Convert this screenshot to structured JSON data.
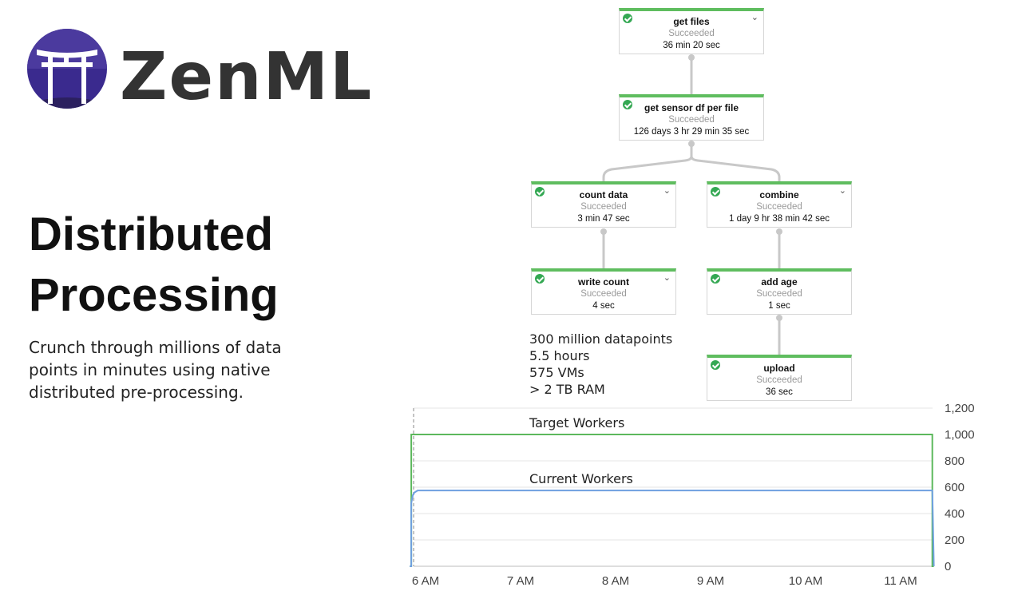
{
  "logo": {
    "name": "ZenML",
    "brand_color": "#3b2a8c"
  },
  "headline": {
    "line1": "Distributed",
    "line2": "Processing"
  },
  "description": "Crunch through millions of data points in minutes using native distributed pre-processing.",
  "pipeline": {
    "status_color": "#34a853",
    "nodes": [
      {
        "name": "get files",
        "status": "Succeeded",
        "duration": "36 min 20 sec",
        "expand_icon": "chevron-down-icon"
      },
      {
        "name": "get sensor df per file",
        "status": "Succeeded",
        "duration": "126 days 3 hr 29 min 35 sec"
      },
      {
        "name": "count data",
        "status": "Succeeded",
        "duration": "3 min 47 sec",
        "expand_icon": "chevron-down-icon"
      },
      {
        "name": "combine",
        "status": "Succeeded",
        "duration": "1 day 9 hr 38 min 42 sec",
        "expand_icon": "chevron-down-icon"
      },
      {
        "name": "write count",
        "status": "Succeeded",
        "duration": "4 sec",
        "expand_icon": "chevron-down-icon"
      },
      {
        "name": "add age",
        "status": "Succeeded",
        "duration": "1 sec"
      },
      {
        "name": "upload",
        "status": "Succeeded",
        "duration": "36 sec"
      }
    ]
  },
  "stats": [
    "300 million datapoints",
    "5.5 hours",
    "575 VMs",
    "> 2 TB RAM"
  ],
  "chart_data": {
    "type": "line",
    "x_ticks": [
      "6 AM",
      "7 AM",
      "8 AM",
      "9 AM",
      "10 AM",
      "11 AM"
    ],
    "y_ticks": [
      "0",
      "200",
      "400",
      "600",
      "800",
      "1,000",
      "1,200"
    ],
    "ylim": [
      0,
      1200
    ],
    "grid": true,
    "series": [
      {
        "name": "Target Workers",
        "color": "#5cb85c",
        "x": [
          "05:50",
          "05:51",
          "05:51",
          "11:20",
          "11:20",
          "11:21"
        ],
        "y": [
          0,
          0,
          1000,
          1000,
          0,
          0
        ]
      },
      {
        "name": "Current Workers",
        "color": "#6fa0e0",
        "x": [
          "05:50",
          "05:51",
          "05:51",
          "05:52",
          "05:53",
          "05:55",
          "11:20",
          "11:21"
        ],
        "y": [
          0,
          0,
          480,
          540,
          560,
          575,
          575,
          0
        ]
      }
    ]
  }
}
